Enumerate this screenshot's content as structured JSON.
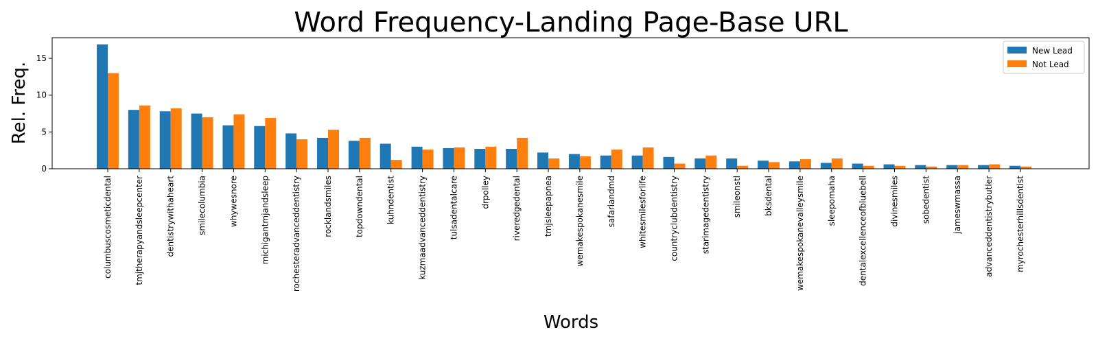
{
  "chart_data": {
    "type": "bar",
    "title": "Word Frequency-Landing Page-Base URL",
    "xlabel": "Words",
    "ylabel": "Rel. Freq.",
    "ylim": [
      0,
      17.8
    ],
    "yticks": [
      "0",
      "5",
      "10",
      "15"
    ],
    "grid": false,
    "legend_position": "top-right",
    "categories": [
      "columbuscosmeticdental",
      "tmjtherapyandsleepcenter",
      "dentistrywithaheart",
      "smilecolumbia",
      "whywesnore",
      "michigantmjandsleep",
      "rochesteradvanceddentistry",
      "rocklandsmiles",
      "topdowndental",
      "kuhndentist",
      "kuzmaadvanceddentistry",
      "tulsadentalcare",
      "drpolley",
      "riveredgedental",
      "tmjsleepapnea",
      "wemakespokanesmile",
      "safariandmd",
      "whitesmilesforlife",
      "countryclubdentistry",
      "starimagedentistry",
      "smileonstl",
      "bksdental",
      "wemakespokanevalleysmile",
      "sleepomaha",
      "dentalexcellenceofbluebell",
      "divinesmiles",
      "sobedentist",
      "jameswmassa",
      "advanceddentistrybutler",
      "myrochesterhillsdentist"
    ],
    "series": [
      {
        "name": "New Lead",
        "color": "#1f77b4",
        "values": [
          16.9,
          8.0,
          7.8,
          7.5,
          5.9,
          5.8,
          4.8,
          4.2,
          3.8,
          3.4,
          3.0,
          2.8,
          2.7,
          2.7,
          2.2,
          2.0,
          1.8,
          1.8,
          1.6,
          1.4,
          1.4,
          1.1,
          1.0,
          0.8,
          0.7,
          0.6,
          0.5,
          0.5,
          0.5,
          0.4
        ]
      },
      {
        "name": "Not Lead",
        "color": "#ff7f0e",
        "values": [
          13.0,
          8.6,
          8.2,
          7.0,
          7.4,
          6.9,
          4.0,
          5.3,
          4.2,
          1.2,
          2.6,
          2.9,
          3.0,
          4.2,
          1.4,
          1.7,
          2.6,
          2.9,
          0.7,
          1.8,
          0.4,
          0.9,
          1.3,
          1.4,
          0.4,
          0.4,
          0.3,
          0.5,
          0.6,
          0.3
        ]
      }
    ]
  }
}
